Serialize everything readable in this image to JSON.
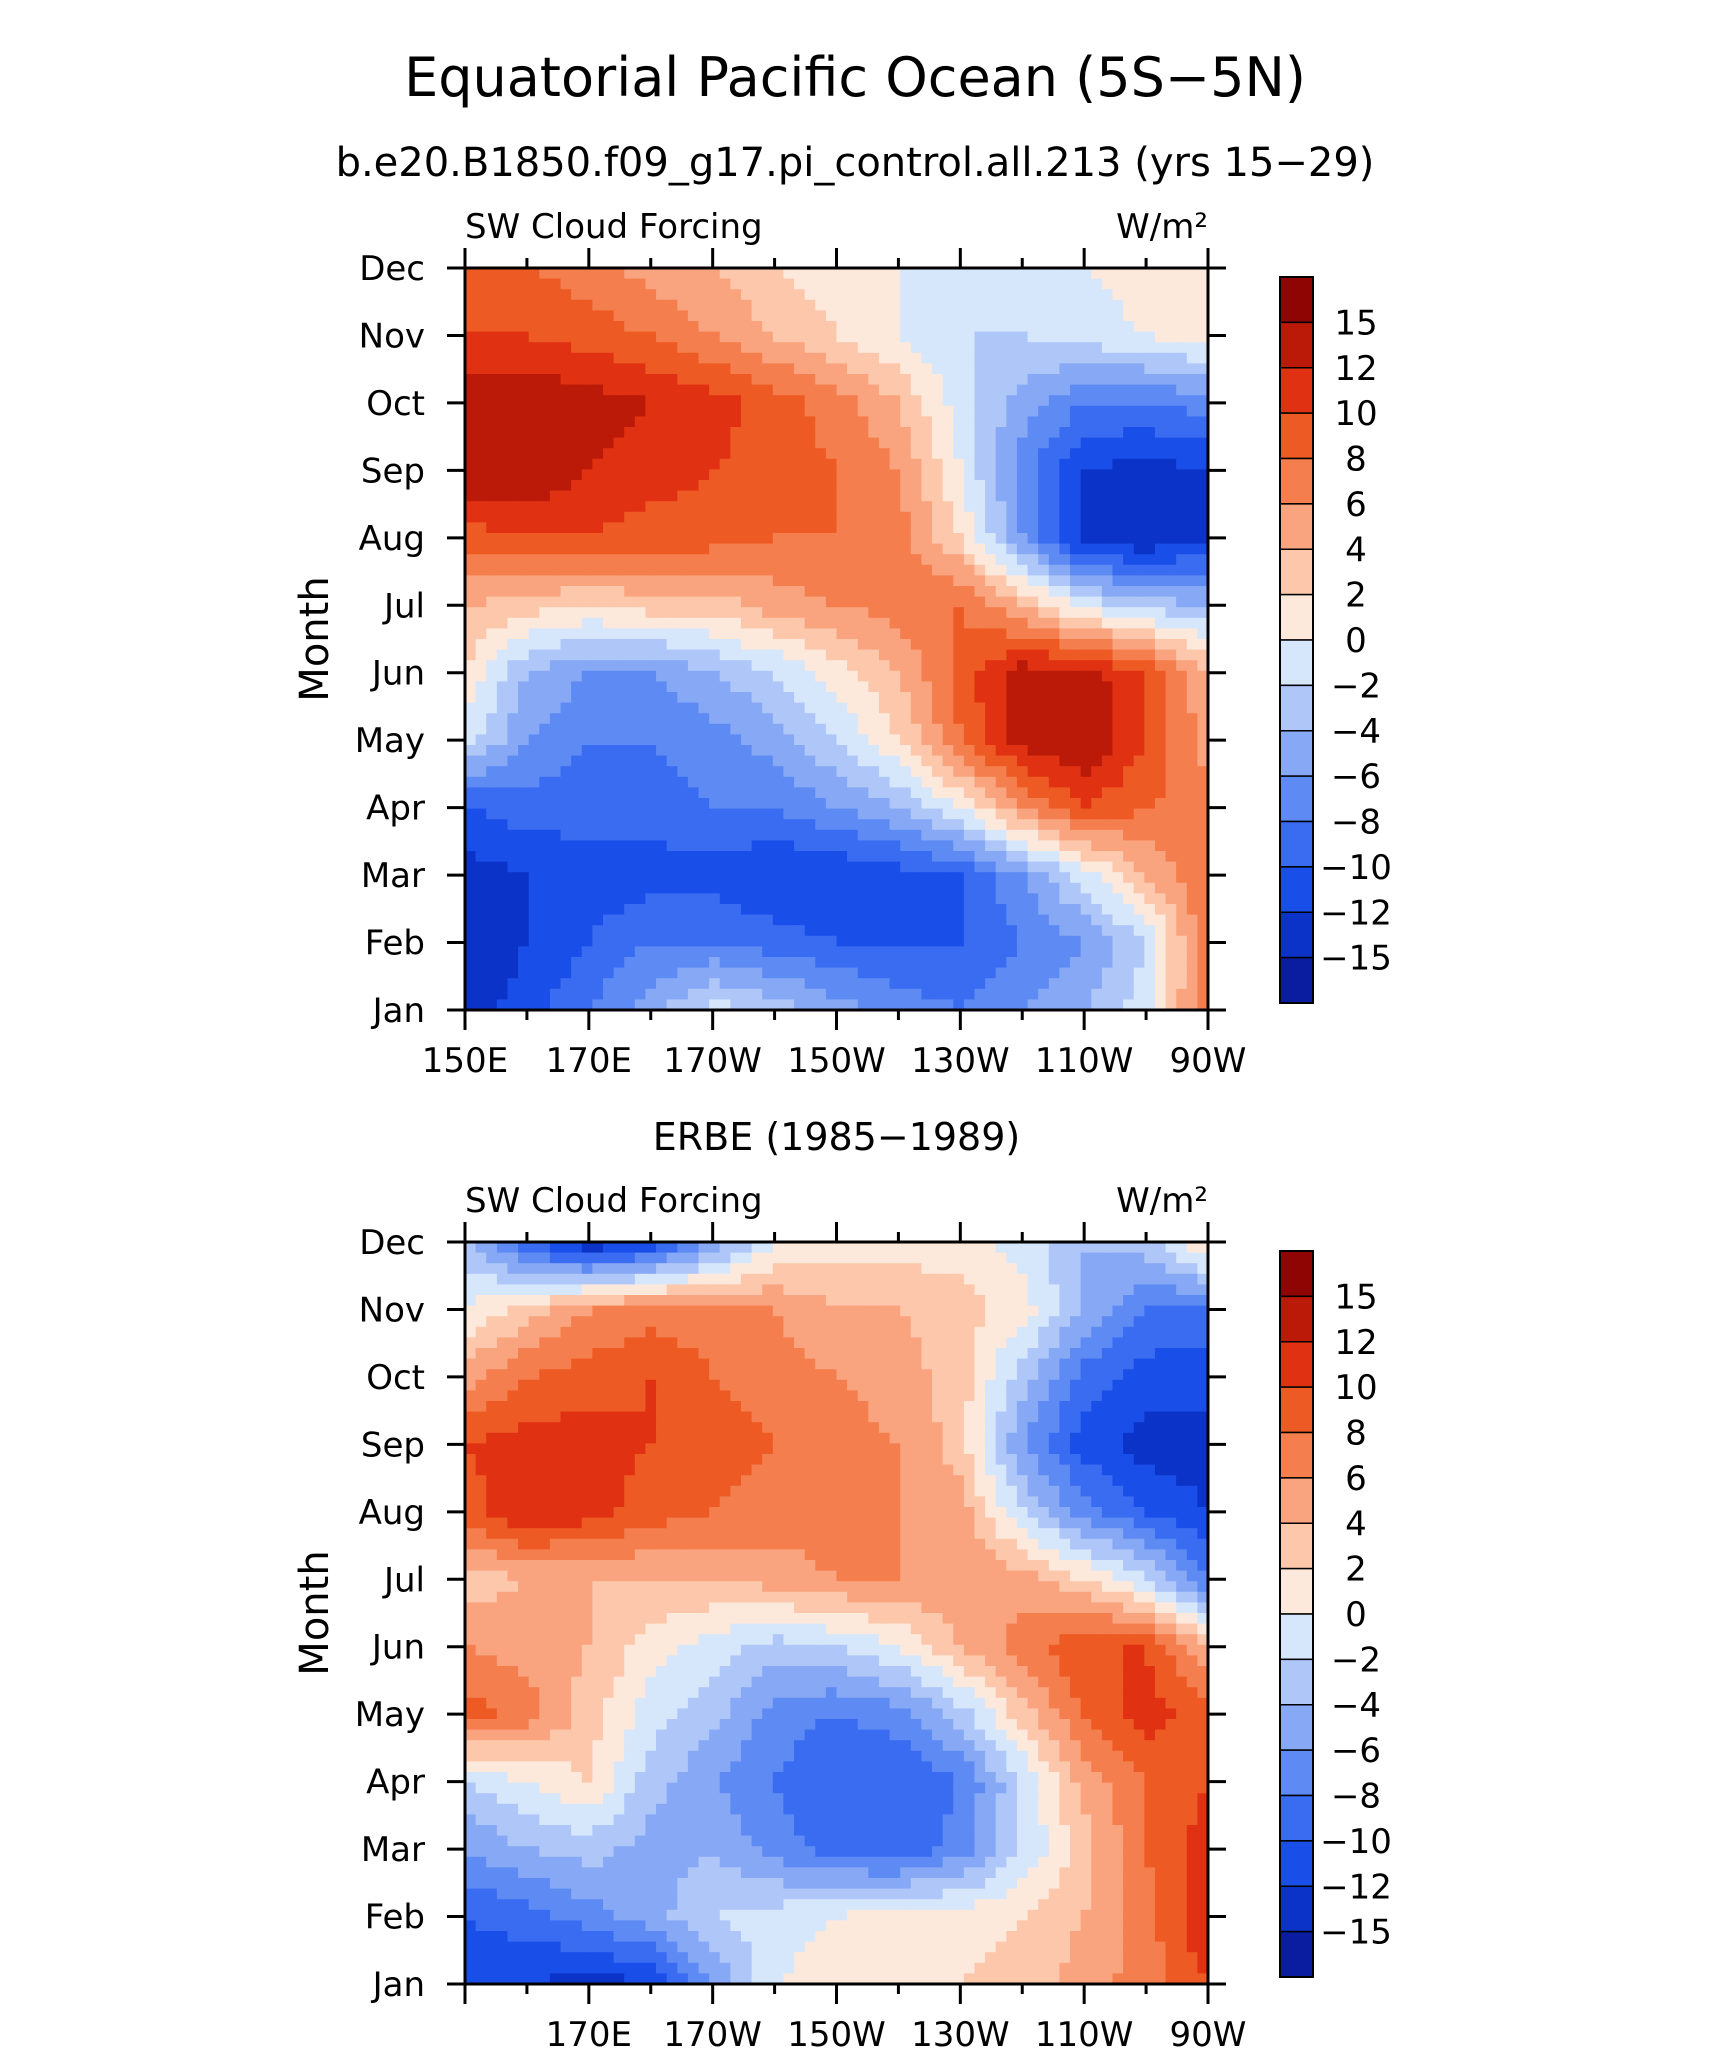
{
  "title": "Equatorial Pacific Ocean (5S−5N)",
  "subtitle": "b.e20.B1850.f09_g17.pi_control.all.213 (yrs 15−29)",
  "palette": [
    "#08007f",
    "#0a1ca0",
    "#0b33c8",
    "#1a4ee8",
    "#3a6cf2",
    "#5e8af3",
    "#87a8f5",
    "#aec6f8",
    "#d6e6fb",
    "#fde8dc",
    "#fcc7ab",
    "#f9a47f",
    "#f47e4d",
    "#ee5a24",
    "#e03212",
    "#bc1a08",
    "#8e0503"
  ],
  "chart_data": [
    {
      "type": "heatmap",
      "panel_title": "",
      "left_label": "SW Cloud Forcing",
      "right_label": "W/m²",
      "ylabel": "Month",
      "x_axis_labels": [
        "150E",
        "170E",
        "170W",
        "150W",
        "130W",
        "110W",
        "90W"
      ],
      "x_range_deg_east": [
        150,
        270
      ],
      "x": [
        150,
        160,
        170,
        180,
        190,
        200,
        210,
        220,
        230,
        240,
        250,
        260,
        270
      ],
      "y_categories": [
        "Jan",
        "Feb",
        "Mar",
        "Apr",
        "May",
        "Jun",
        "Jul",
        "Aug",
        "Sep",
        "Oct",
        "Nov",
        "Dec"
      ],
      "colorbar_labels": [
        "15",
        "12",
        "10",
        "8",
        "6",
        "4",
        "2",
        "0",
        "−2",
        "−4",
        "−6",
        "−8",
        "−10",
        "−12",
        "−15"
      ],
      "colorbar_levels": [
        -15,
        -12,
        -10,
        -8,
        -6,
        -4,
        -2,
        0,
        2,
        4,
        6,
        8,
        10,
        12,
        15
      ],
      "z": [
        [
          -13,
          -11,
          -8,
          -5,
          -1,
          -3,
          -5,
          -7,
          -8,
          -6,
          -4,
          -1,
          8
        ],
        [
          -14,
          -12,
          -10,
          -8,
          -8,
          -9,
          -10,
          -10,
          -10,
          -8,
          -6,
          -2,
          8
        ],
        [
          -13,
          -12,
          -11,
          -11,
          -11,
          -12,
          -12,
          -11,
          -10,
          -6,
          -1,
          4,
          8
        ],
        [
          -10,
          -9,
          -9,
          -9,
          -8,
          -8,
          -6,
          -4,
          0,
          6,
          10,
          8,
          7
        ],
        [
          -1,
          -6,
          -8,
          -8,
          -7,
          -5,
          -2,
          2,
          8,
          13,
          14,
          10,
          5
        ],
        [
          2,
          -4,
          -6,
          -6,
          -4,
          -2,
          1,
          4,
          9,
          13,
          13,
          10,
          4
        ],
        [
          4,
          3,
          2,
          3,
          3,
          5,
          6,
          7,
          8,
          4,
          -1,
          -3,
          -4
        ],
        [
          9,
          10,
          10,
          9,
          9,
          8,
          8,
          7,
          2,
          -6,
          -13,
          -14,
          -12
        ],
        [
          14,
          14,
          12,
          11,
          10,
          9,
          8,
          6,
          0,
          -7,
          -12,
          -13,
          -12
        ],
        [
          14,
          14,
          13,
          12,
          11,
          9,
          7,
          4,
          -1,
          -5,
          -8,
          -8,
          -7
        ],
        [
          10,
          10,
          9,
          8,
          6,
          4,
          2,
          0,
          -2,
          -2,
          -1,
          0,
          1
        ],
        [
          8,
          8,
          7,
          5,
          4,
          2,
          1,
          0,
          -1,
          -1,
          0,
          1,
          2
        ]
      ]
    },
    {
      "type": "heatmap",
      "panel_title": "ERBE (1985−1989)",
      "left_label": "SW Cloud Forcing",
      "right_label": "W/m²",
      "ylabel": "Month",
      "x_axis_labels": [
        "170E",
        "170W",
        "150W",
        "130W",
        "110W",
        "90W"
      ],
      "x_range_deg_east": [
        150,
        270
      ],
      "x": [
        150,
        160,
        170,
        180,
        190,
        200,
        210,
        220,
        230,
        240,
        250,
        260,
        270
      ],
      "y_categories": [
        "Jan",
        "Feb",
        "Mar",
        "Apr",
        "May",
        "Jun",
        "Jul",
        "Aug",
        "Sep",
        "Oct",
        "Nov",
        "Dec"
      ],
      "colorbar_labels": [
        "15",
        "12",
        "10",
        "8",
        "6",
        "4",
        "2",
        "0",
        "−2",
        "−4",
        "−6",
        "−8",
        "−10",
        "−12",
        "−15"
      ],
      "colorbar_levels": [
        -15,
        -12,
        -10,
        -8,
        -6,
        -4,
        -2,
        0,
        2,
        4,
        6,
        8,
        10,
        12,
        15
      ],
      "z": [
        [
          -11,
          -12,
          -13,
          -12,
          -6,
          0,
          1,
          2,
          2,
          3,
          5,
          7,
          10
        ],
        [
          -10,
          -9,
          -7,
          -5,
          -2,
          -1,
          0,
          1,
          1,
          2,
          4,
          7,
          12
        ],
        [
          -6,
          -4,
          -3,
          -5,
          -4,
          -7,
          -9,
          -10,
          -7,
          -2,
          3,
          8,
          11
        ],
        [
          -2,
          0,
          2,
          -3,
          -6,
          -8,
          -10,
          -10,
          -8,
          -2,
          5,
          8,
          10
        ],
        [
          9,
          7,
          3,
          -1,
          -3,
          -7,
          -8,
          -7,
          -3,
          3,
          8,
          11,
          9
        ],
        [
          6,
          5,
          4,
          1,
          -1,
          -3,
          -2,
          0,
          4,
          7,
          10,
          10,
          4
        ],
        [
          3,
          4,
          4,
          4,
          4,
          5,
          6,
          6,
          6,
          5,
          2,
          -2,
          -8
        ],
        [
          9,
          12,
          11,
          9,
          8,
          7,
          7,
          6,
          5,
          -2,
          -7,
          -10,
          -12
        ],
        [
          10,
          11,
          11,
          10,
          9,
          8,
          7,
          6,
          3,
          -6,
          -11,
          -13,
          -13
        ],
        [
          5,
          8,
          9,
          10,
          8,
          7,
          6,
          5,
          3,
          -3,
          -9,
          -11,
          -11
        ],
        [
          0,
          3,
          6,
          7,
          7,
          6,
          4,
          4,
          3,
          1,
          -4,
          -8,
          -9
        ],
        [
          -3,
          -10,
          -14,
          -12,
          -6,
          0,
          1,
          1,
          1,
          -1,
          -4,
          -3,
          3
        ]
      ]
    }
  ]
}
